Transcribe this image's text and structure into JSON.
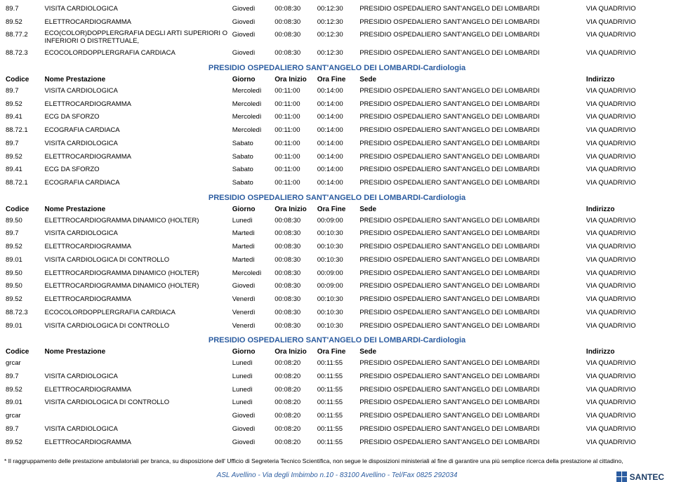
{
  "colors": {
    "accent": "#2b5ca0",
    "text": "#000000"
  },
  "section_title": "PRESIDIO OSPEDALIERO SANT'ANGELO DEI LOMBARDI-Cardiologia",
  "col_headers": {
    "codice": "Codice",
    "nome": "Nome Prestazione",
    "giorno": "Giorno",
    "ora_inizio": "Ora Inizio",
    "ora_fine": "Ora Fine",
    "sede": "Sede",
    "indirizzo": "Indirizzo"
  },
  "groups": [
    {
      "has_header": false,
      "rows": [
        {
          "codice": "89.7",
          "nome": "VISITA CARDIOLOGICA",
          "giorno": "Giovedì",
          "i": "00:08:30",
          "f": "00:12:30",
          "sede": "PRESIDIO OSPEDALIERO SANT'ANGELO DEI LOMBARDI",
          "ind": "VIA QUADRIVIO"
        },
        {
          "codice": "89.52",
          "nome": "ELETTROCARDIOGRAMMA",
          "giorno": "Giovedì",
          "i": "00:08:30",
          "f": "00:12:30",
          "sede": "PRESIDIO OSPEDALIERO SANT'ANGELO DEI LOMBARDI",
          "ind": "VIA QUADRIVIO"
        },
        {
          "codice": "88.77.2",
          "nome": "ECO(COLOR)DOPPLERGRAFIA DEGLI ARTI SUPERIORI O INFERIORI O DISTRETTUALE,",
          "giorno": "Giovedì",
          "i": "00:08:30",
          "f": "00:12:30",
          "sede": "PRESIDIO OSPEDALIERO SANT'ANGELO DEI LOMBARDI",
          "ind": "VIA QUADRIVIO",
          "wrap": true
        },
        {
          "codice": "88.72.3",
          "nome": "ECOCOLORDOPPLERGRAFIA CARDIACA",
          "giorno": "Giovedì",
          "i": "00:08:30",
          "f": "00:12:30",
          "sede": "PRESIDIO OSPEDALIERO SANT'ANGELO DEI LOMBARDI",
          "ind": "VIA QUADRIVIO"
        }
      ]
    },
    {
      "has_header": true,
      "rows": [
        {
          "codice": "89.7",
          "nome": "VISITA CARDIOLOGICA",
          "giorno": "Mercoledì",
          "i": "00:11:00",
          "f": "00:14:00",
          "sede": "PRESIDIO OSPEDALIERO SANT'ANGELO DEI LOMBARDI",
          "ind": "VIA QUADRIVIO"
        },
        {
          "codice": "89.52",
          "nome": "ELETTROCARDIOGRAMMA",
          "giorno": "Mercoledì",
          "i": "00:11:00",
          "f": "00:14:00",
          "sede": "PRESIDIO OSPEDALIERO SANT'ANGELO DEI LOMBARDI",
          "ind": "VIA QUADRIVIO"
        },
        {
          "codice": "89.41",
          "nome": "ECG DA SFORZO",
          "giorno": "Mercoledì",
          "i": "00:11:00",
          "f": "00:14:00",
          "sede": "PRESIDIO OSPEDALIERO SANT'ANGELO DEI LOMBARDI",
          "ind": "VIA QUADRIVIO"
        },
        {
          "codice": "88.72.1",
          "nome": "ECOGRAFIA CARDIACA",
          "giorno": "Mercoledì",
          "i": "00:11:00",
          "f": "00:14:00",
          "sede": "PRESIDIO OSPEDALIERO SANT'ANGELO DEI LOMBARDI",
          "ind": "VIA QUADRIVIO"
        },
        {
          "codice": "89.7",
          "nome": "VISITA CARDIOLOGICA",
          "giorno": "Sabato",
          "i": "00:11:00",
          "f": "00:14:00",
          "sede": "PRESIDIO OSPEDALIERO SANT'ANGELO DEI LOMBARDI",
          "ind": "VIA QUADRIVIO"
        },
        {
          "codice": "89.52",
          "nome": "ELETTROCARDIOGRAMMA",
          "giorno": "Sabato",
          "i": "00:11:00",
          "f": "00:14:00",
          "sede": "PRESIDIO OSPEDALIERO SANT'ANGELO DEI LOMBARDI",
          "ind": "VIA QUADRIVIO"
        },
        {
          "codice": "89.41",
          "nome": "ECG DA SFORZO",
          "giorno": "Sabato",
          "i": "00:11:00",
          "f": "00:14:00",
          "sede": "PRESIDIO OSPEDALIERO SANT'ANGELO DEI LOMBARDI",
          "ind": "VIA QUADRIVIO"
        },
        {
          "codice": "88.72.1",
          "nome": "ECOGRAFIA CARDIACA",
          "giorno": "Sabato",
          "i": "00:11:00",
          "f": "00:14:00",
          "sede": "PRESIDIO OSPEDALIERO SANT'ANGELO DEI LOMBARDI",
          "ind": "VIA QUADRIVIO"
        }
      ]
    },
    {
      "has_header": true,
      "rows": [
        {
          "codice": "89.50",
          "nome": "ELETTROCARDIOGRAMMA DINAMICO (HOLTER)",
          "giorno": "Lunedì",
          "i": "00:08:30",
          "f": "00:09:00",
          "sede": "PRESIDIO OSPEDALIERO SANT'ANGELO DEI LOMBARDI",
          "ind": "VIA QUADRIVIO"
        },
        {
          "codice": "89.7",
          "nome": "VISITA CARDIOLOGICA",
          "giorno": "Martedì",
          "i": "00:08:30",
          "f": "00:10:30",
          "sede": "PRESIDIO OSPEDALIERO SANT'ANGELO DEI LOMBARDI",
          "ind": "VIA QUADRIVIO"
        },
        {
          "codice": "89.52",
          "nome": "ELETTROCARDIOGRAMMA",
          "giorno": "Martedì",
          "i": "00:08:30",
          "f": "00:10:30",
          "sede": "PRESIDIO OSPEDALIERO SANT'ANGELO DEI LOMBARDI",
          "ind": "VIA QUADRIVIO"
        },
        {
          "codice": "89.01",
          "nome": "VISITA CARDIOLOGICA DI CONTROLLO",
          "giorno": "Martedì",
          "i": "00:08:30",
          "f": "00:10:30",
          "sede": "PRESIDIO OSPEDALIERO SANT'ANGELO DEI LOMBARDI",
          "ind": "VIA QUADRIVIO"
        },
        {
          "codice": "89.50",
          "nome": "ELETTROCARDIOGRAMMA DINAMICO (HOLTER)",
          "giorno": "Mercoledì",
          "i": "00:08:30",
          "f": "00:09:00",
          "sede": "PRESIDIO OSPEDALIERO SANT'ANGELO DEI LOMBARDI",
          "ind": "VIA QUADRIVIO"
        },
        {
          "codice": "89.50",
          "nome": "ELETTROCARDIOGRAMMA DINAMICO (HOLTER)",
          "giorno": "Giovedì",
          "i": "00:08:30",
          "f": "00:09:00",
          "sede": "PRESIDIO OSPEDALIERO SANT'ANGELO DEI LOMBARDI",
          "ind": "VIA QUADRIVIO"
        },
        {
          "codice": "89.52",
          "nome": "ELETTROCARDIOGRAMMA",
          "giorno": "Venerdì",
          "i": "00:08:30",
          "f": "00:10:30",
          "sede": "PRESIDIO OSPEDALIERO SANT'ANGELO DEI LOMBARDI",
          "ind": "VIA QUADRIVIO"
        },
        {
          "codice": "88.72.3",
          "nome": "ECOCOLORDOPPLERGRAFIA CARDIACA",
          "giorno": "Venerdì",
          "i": "00:08:30",
          "f": "00:10:30",
          "sede": "PRESIDIO OSPEDALIERO SANT'ANGELO DEI LOMBARDI",
          "ind": "VIA QUADRIVIO"
        },
        {
          "codice": "89.01",
          "nome": "VISITA CARDIOLOGICA DI CONTROLLO",
          "giorno": "Venerdì",
          "i": "00:08:30",
          "f": "00:10:30",
          "sede": "PRESIDIO OSPEDALIERO SANT'ANGELO DEI LOMBARDI",
          "ind": "VIA QUADRIVIO"
        }
      ]
    },
    {
      "has_header": true,
      "rows": [
        {
          "codice": "grcar",
          "nome": "",
          "giorno": "Lunedì",
          "i": "00:08:20",
          "f": "00:11:55",
          "sede": "PRESIDIO OSPEDALIERO SANT'ANGELO DEI LOMBARDI",
          "ind": "VIA QUADRIVIO"
        },
        {
          "codice": "89.7",
          "nome": "VISITA CARDIOLOGICA",
          "giorno": "Lunedì",
          "i": "00:08:20",
          "f": "00:11:55",
          "sede": "PRESIDIO OSPEDALIERO SANT'ANGELO DEI LOMBARDI",
          "ind": "VIA QUADRIVIO"
        },
        {
          "codice": "89.52",
          "nome": "ELETTROCARDIOGRAMMA",
          "giorno": "Lunedì",
          "i": "00:08:20",
          "f": "00:11:55",
          "sede": "PRESIDIO OSPEDALIERO SANT'ANGELO DEI LOMBARDI",
          "ind": "VIA QUADRIVIO"
        },
        {
          "codice": "89.01",
          "nome": "VISITA CARDIOLOGICA DI CONTROLLO",
          "giorno": "Lunedì",
          "i": "00:08:20",
          "f": "00:11:55",
          "sede": "PRESIDIO OSPEDALIERO SANT'ANGELO DEI LOMBARDI",
          "ind": "VIA QUADRIVIO"
        },
        {
          "codice": "grcar",
          "nome": "",
          "giorno": "Giovedì",
          "i": "00:08:20",
          "f": "00:11:55",
          "sede": "PRESIDIO OSPEDALIERO SANT'ANGELO DEI LOMBARDI",
          "ind": "VIA QUADRIVIO"
        },
        {
          "codice": "89.7",
          "nome": "VISITA CARDIOLOGICA",
          "giorno": "Giovedì",
          "i": "00:08:20",
          "f": "00:11:55",
          "sede": "PRESIDIO OSPEDALIERO SANT'ANGELO DEI LOMBARDI",
          "ind": "VIA QUADRIVIO"
        },
        {
          "codice": "89.52",
          "nome": "ELETTROCARDIOGRAMMA",
          "giorno": "Giovedì",
          "i": "00:08:20",
          "f": "00:11:55",
          "sede": "PRESIDIO OSPEDALIERO SANT'ANGELO DEI LOMBARDI",
          "ind": "VIA QUADRIVIO"
        }
      ]
    }
  ],
  "footnote": "* Il raggruppamento delle prestazione ambulatoriali per branca, su disposizione dell' Ufficio di Segreteria Tecnico Scientifica, non segue le disposizioni ministeriali al fine di garantire una più semplice ricerca della prestazione al cittadino,",
  "footer": "ASL Avellino - Via degli Imbimbo n.10 - 83100 Avellino - Tel/Fax 0825 292034",
  "logo_text": "SANTEC"
}
